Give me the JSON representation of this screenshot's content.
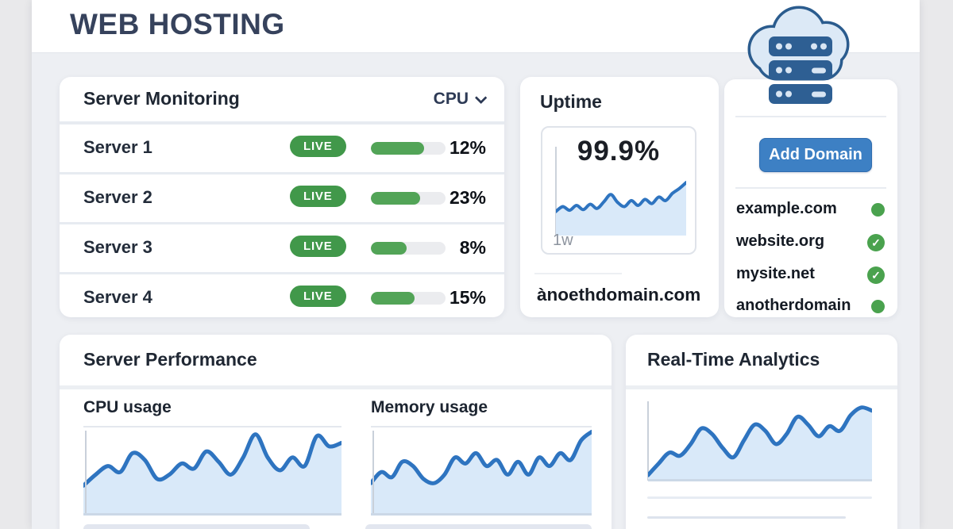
{
  "header": {
    "title": "WEB HOSTING"
  },
  "monitoring": {
    "title": "Server Monitoring",
    "filter_label": "CPU",
    "servers": [
      {
        "name": "Server 1",
        "status": "LIVE",
        "cpu_pct": "12%",
        "bar_fill": 0.71
      },
      {
        "name": "Server 2",
        "status": "LIVE",
        "cpu_pct": "23%",
        "bar_fill": 0.66
      },
      {
        "name": "Server 3",
        "status": "LIVE",
        "cpu_pct": "8%",
        "bar_fill": 0.48
      },
      {
        "name": "Server 4",
        "status": "LIVE",
        "cpu_pct": "15%",
        "bar_fill": 0.59
      }
    ]
  },
  "uptime": {
    "title": "Uptime",
    "value": "99.9%",
    "range_label": "1w",
    "domain": "ànoethdomain.com",
    "series": [
      0.6,
      0.52,
      0.58,
      0.5,
      0.57,
      0.48,
      0.55,
      0.44,
      0.32,
      0.45,
      0.52,
      0.42,
      0.5,
      0.4,
      0.47,
      0.36,
      0.42,
      0.3,
      0.22,
      0.12
    ]
  },
  "domains": {
    "button_label": "Add Domain",
    "items": [
      {
        "name": "example.com",
        "status": "dot"
      },
      {
        "name": "website.org",
        "status": "check"
      },
      {
        "name": "mysite.net",
        "status": "check"
      },
      {
        "name": "anotherdomain",
        "status": "dot"
      }
    ]
  },
  "performance": {
    "title": "Server Performance",
    "charts": [
      {
        "label": "CPU usage",
        "series": [
          0.68,
          0.55,
          0.45,
          0.52,
          0.3,
          0.38,
          0.6,
          0.55,
          0.42,
          0.48,
          0.28,
          0.4,
          0.55,
          0.35,
          0.08,
          0.35,
          0.5,
          0.35,
          0.45,
          0.1,
          0.22,
          0.18
        ]
      },
      {
        "label": "Memory usage",
        "series": [
          0.65,
          0.52,
          0.58,
          0.4,
          0.45,
          0.6,
          0.65,
          0.55,
          0.35,
          0.42,
          0.3,
          0.45,
          0.38,
          0.55,
          0.4,
          0.55,
          0.35,
          0.45,
          0.3,
          0.38,
          0.15,
          0.05
        ]
      }
    ]
  },
  "analytics": {
    "title": "Real-Time Analytics",
    "series": [
      0.95,
      0.8,
      0.66,
      0.7,
      0.55,
      0.35,
      0.42,
      0.6,
      0.72,
      0.5,
      0.3,
      0.38,
      0.55,
      0.42,
      0.2,
      0.3,
      0.45,
      0.32,
      0.38,
      0.18,
      0.08,
      0.12
    ]
  },
  "colors": {
    "accent_blue": "#3d80c4",
    "wave_blue": "#2e74c0",
    "wave_fill": "#d9e9f9",
    "status_green": "#4aa24e",
    "badge_green": "#41984a",
    "title_navy": "#36425c"
  }
}
